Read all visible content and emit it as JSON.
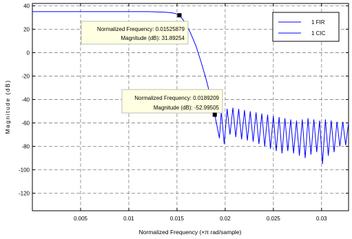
{
  "chart_data": {
    "type": "line",
    "title": "",
    "xlabel": "Normalized Frequency (×π rad/sample)",
    "ylabel": "Magnitude (dB)",
    "xlim": [
      0,
      0.0328
    ],
    "ylim": [
      -135,
      42
    ],
    "xticks": [
      0.005,
      0.01,
      0.015,
      0.02,
      0.025,
      0.03
    ],
    "xtick_labels": [
      "0.005",
      "0.01",
      "0.015",
      "0.02",
      "0.025",
      "0.03"
    ],
    "yticks": [
      40,
      20,
      0,
      -20,
      -40,
      -60,
      -80,
      -100,
      -120
    ],
    "ytick_labels": [
      "40",
      "20",
      "0",
      "-20",
      "-40",
      "-60",
      "-80",
      "-100",
      "-120"
    ],
    "grid": true,
    "legend": {
      "placement": "top-right"
    },
    "series": [
      {
        "name": "1 FIR",
        "color": "#0000ff",
        "x": [
          0,
          0.012,
          0.0138,
          0.0145,
          0.015,
          0.01525879,
          0.0155,
          0.016,
          0.0165,
          0.017,
          0.0175,
          0.018,
          0.0184,
          0.0187,
          0.0189209
        ],
        "y": [
          35,
          35,
          34.5,
          34,
          33,
          31.89,
          29.5,
          24,
          15,
          5,
          -8,
          -22,
          -35,
          -45,
          -52.99
        ]
      },
      {
        "name": "1 CIC",
        "color": "#0000ff",
        "x": [
          0.0189209,
          0.0194,
          0.0196,
          0.0199,
          0.0202,
          0.0205,
          0.0208,
          0.0211,
          0.0214,
          0.0217,
          0.022,
          0.0223,
          0.0226,
          0.0229,
          0.0232,
          0.0235,
          0.0238,
          0.0241,
          0.0244,
          0.0247,
          0.025,
          0.0253,
          0.0256,
          0.0259,
          0.0262,
          0.0265,
          0.0268,
          0.0271,
          0.0274,
          0.0277,
          0.028,
          0.0283,
          0.0286,
          0.0289,
          0.0292,
          0.0295,
          0.0298,
          0.0301,
          0.0304,
          0.0307,
          0.031,
          0.0313,
          0.0316,
          0.0319,
          0.0322,
          0.0325,
          0.0328
        ],
        "y": [
          -52.99,
          -73,
          -50,
          -78,
          -48,
          -70,
          -47,
          -72,
          -48,
          -74,
          -49,
          -75,
          -50,
          -76,
          -51,
          -78,
          -52,
          -80,
          -53,
          -82,
          -54,
          -84,
          -55,
          -86,
          -56,
          -84,
          -57,
          -86,
          -58,
          -88,
          -57,
          -90,
          -56,
          -87,
          -57,
          -85,
          -58,
          -95,
          -57,
          -88,
          -58,
          -85,
          -59,
          -80,
          -59,
          -79,
          -60
        ]
      }
    ],
    "annotations": [
      {
        "id": "tip1",
        "point": [
          0.01525879,
          31.89254
        ],
        "lines": [
          "Normalized Frequency: 0.01525879",
          "Magnitude (dB): 31.89254"
        ]
      },
      {
        "id": "tip2",
        "point": [
          0.0189209,
          -52.99505
        ],
        "lines": [
          "Normalized Frequency: 0.0189209",
          "Magnitude (dB): -52.99505"
        ]
      }
    ]
  }
}
